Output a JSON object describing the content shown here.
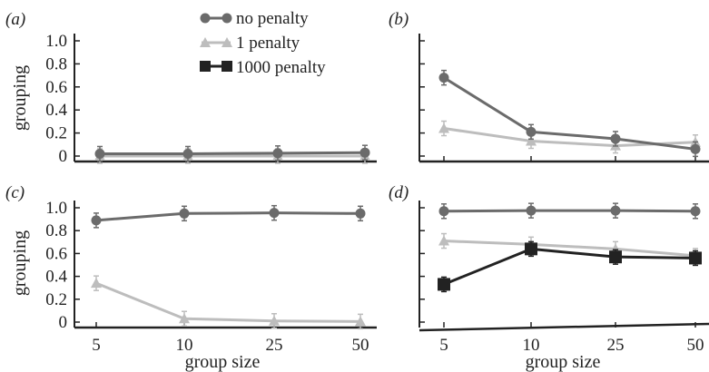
{
  "figure": {
    "legend": [
      {
        "label": "no penalty",
        "color": "#6b6b6b",
        "marker": "circle"
      },
      {
        "label": "1 penalty",
        "color": "#bdbdbd",
        "marker": "triangle"
      },
      {
        "label": "1000 penalty",
        "color": "#222222",
        "marker": "square"
      }
    ],
    "xlabel": "group size",
    "ylabel": "grouping"
  },
  "chart_data": [
    {
      "type": "line",
      "panel": "(a)",
      "categories": [
        "5",
        "10",
        "25",
        "50"
      ],
      "ylim": [
        0,
        1
      ],
      "yticks": [
        "0",
        "0.2",
        "0.4",
        "0.6",
        "0.8",
        "1.0"
      ],
      "ylabel": "grouping",
      "xlabel": "",
      "series": [
        {
          "name": "no penalty",
          "values": [
            0.02,
            0.02,
            0.025,
            0.03
          ]
        },
        {
          "name": "1 penalty",
          "values": [
            0.0,
            0.0,
            0.0,
            0.0
          ]
        }
      ]
    },
    {
      "type": "line",
      "panel": "(b)",
      "categories": [
        "5",
        "10",
        "25",
        "50"
      ],
      "ylim": [
        0,
        1
      ],
      "yticks": [],
      "ylabel": "",
      "xlabel": "",
      "series": [
        {
          "name": "no penalty",
          "values": [
            0.68,
            0.21,
            0.15,
            0.06
          ]
        },
        {
          "name": "1 penalty",
          "values": [
            0.24,
            0.13,
            0.09,
            0.12
          ]
        }
      ]
    },
    {
      "type": "line",
      "panel": "(c)",
      "categories": [
        "5",
        "10",
        "25",
        "50"
      ],
      "ylim": [
        0,
        1
      ],
      "yticks": [
        "0",
        "0.2",
        "0.4",
        "0.6",
        "0.8",
        "1.0"
      ],
      "ylabel": "grouping",
      "xlabel": "group size",
      "series": [
        {
          "name": "no penalty",
          "values": [
            0.89,
            0.95,
            0.955,
            0.95
          ]
        },
        {
          "name": "1 penalty",
          "values": [
            0.34,
            0.03,
            0.01,
            0.005
          ]
        }
      ]
    },
    {
      "type": "line",
      "panel": "(d)",
      "categories": [
        "5",
        "10",
        "25",
        "50"
      ],
      "ylim": [
        0,
        1
      ],
      "yticks": [],
      "ylabel": "",
      "xlabel": "group size",
      "series": [
        {
          "name": "no penalty",
          "values": [
            0.97,
            0.975,
            0.975,
            0.97
          ]
        },
        {
          "name": "1 penalty",
          "values": [
            0.71,
            0.68,
            0.64,
            0.58
          ]
        },
        {
          "name": "1000 penalty",
          "values": [
            0.33,
            0.64,
            0.57,
            0.56
          ]
        }
      ]
    }
  ]
}
